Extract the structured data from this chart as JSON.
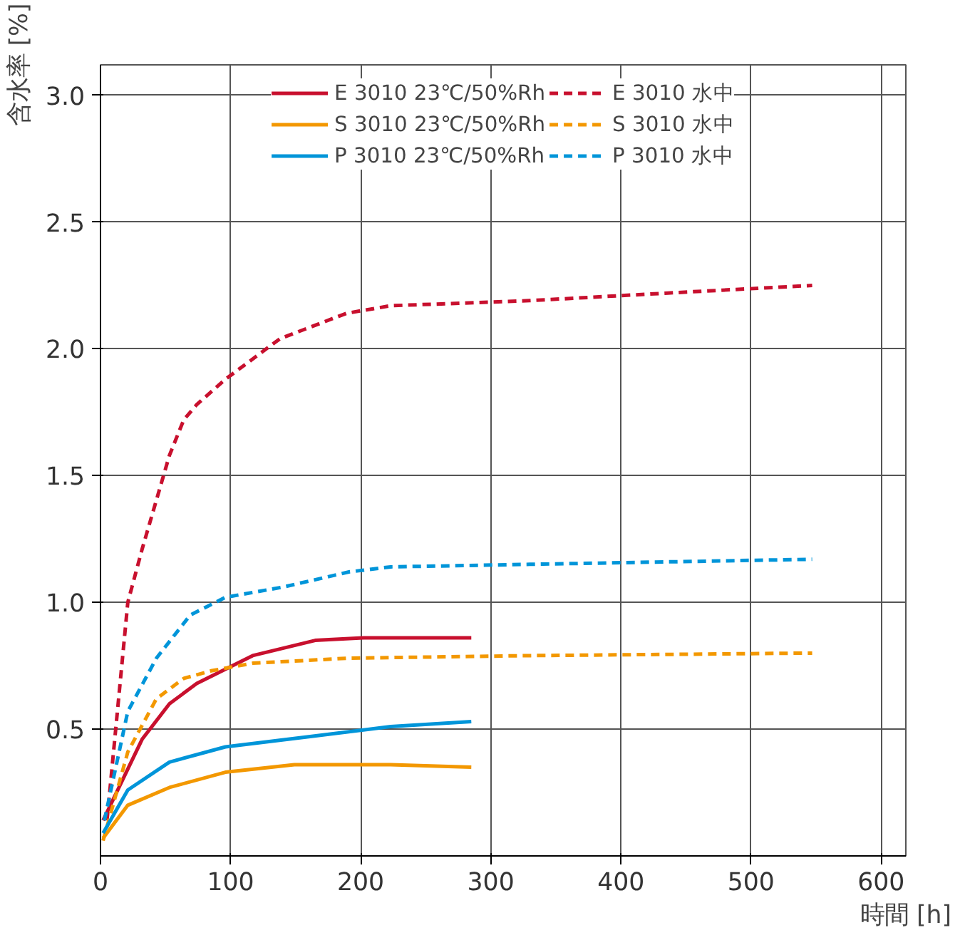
{
  "chart_data": {
    "type": "line",
    "xlabel": "時間 [h]",
    "ylabel": "含水率 [%]",
    "xlim": [
      0,
      619
    ],
    "ylim": [
      0,
      3.12
    ],
    "xticks": [
      0,
      100,
      200,
      300,
      400,
      500,
      600
    ],
    "yticks": [
      0.5,
      {
        "value": 1,
        "label": "1.0"
      },
      1.5,
      {
        "value": 2,
        "label": "2.0"
      },
      2.5,
      {
        "value": 3,
        "label": "3.0"
      }
    ],
    "grid": true,
    "legend": "top",
    "marker": "none",
    "series": [
      {
        "name": "E 3010 23℃/50%Rh",
        "color": "#c8102e",
        "line_style": "solid",
        "x": [
          2,
          32,
          53,
          74,
          117,
          165,
          202,
          285
        ],
        "values": [
          0.14,
          0.46,
          0.6,
          0.68,
          0.79,
          0.85,
          0.86,
          0.86
        ]
      },
      {
        "name": "E 3010 水中",
        "color": "#c8102e",
        "line_style": "dashed",
        "x": [
          5,
          21,
          32,
          53,
          64,
          74,
          96,
          138,
          189,
          223,
          330,
          436,
          547
        ],
        "values": [
          0.14,
          1.0,
          1.21,
          1.58,
          1.72,
          1.78,
          1.88,
          2.04,
          2.14,
          2.17,
          2.19,
          2.22,
          2.25
        ]
      },
      {
        "name": "S 3010 23℃/50%Rh",
        "color": "#f39800",
        "line_style": "solid",
        "x": [
          2,
          21,
          53,
          96,
          149,
          223,
          285
        ],
        "values": [
          0.07,
          0.2,
          0.27,
          0.33,
          0.36,
          0.36,
          0.35
        ]
      },
      {
        "name": "S 3010 水中",
        "color": "#f39800",
        "line_style": "dashed",
        "x": [
          2,
          21,
          43,
          64,
          85,
          117,
          191,
          330,
          547
        ],
        "values": [
          0.06,
          0.41,
          0.62,
          0.7,
          0.73,
          0.76,
          0.78,
          0.79,
          0.8
        ]
      },
      {
        "name": "P 3010 23℃/50%Rh",
        "color": "#0095d9",
        "line_style": "solid",
        "x": [
          2,
          21,
          53,
          96,
          160,
          223,
          285
        ],
        "values": [
          0.09,
          0.26,
          0.37,
          0.43,
          0.47,
          0.51,
          0.53
        ]
      },
      {
        "name": "P 3010 水中",
        "color": "#0095d9",
        "line_style": "dashed",
        "x": [
          3,
          21,
          43,
          69,
          96,
          140,
          191,
          223,
          330,
          547
        ],
        "values": [
          0.14,
          0.57,
          0.78,
          0.95,
          1.02,
          1.06,
          1.12,
          1.14,
          1.15,
          1.17
        ]
      }
    ]
  }
}
